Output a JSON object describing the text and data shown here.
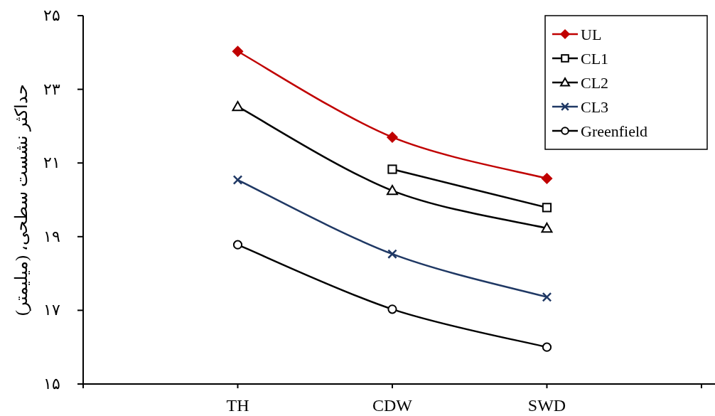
{
  "chart_data": {
    "type": "line",
    "ylabel": "حداکثر نشست سطحی، (میلیمتر)",
    "categories": [
      null,
      "TH",
      "CDW",
      "SWD",
      null
    ],
    "series": [
      {
        "name": "UL",
        "color": "#c00000",
        "marker": "diamond",
        "values": [
          null,
          24.03,
          21.7,
          20.58,
          null
        ]
      },
      {
        "name": "CL1",
        "color": "#000000",
        "marker": "square",
        "values": [
          null,
          null,
          20.83,
          19.79,
          null
        ]
      },
      {
        "name": "CL2",
        "color": "#000000",
        "marker": "triangle",
        "values": [
          null,
          22.53,
          20.25,
          19.23,
          null
        ]
      },
      {
        "name": "CL3",
        "color": "#1f3864",
        "marker": "cross",
        "values": [
          null,
          20.54,
          18.53,
          17.36,
          null
        ]
      },
      {
        "name": "Greenfield",
        "color": "#000000",
        "marker": "circle",
        "values": [
          null,
          18.78,
          17.03,
          16.0,
          null
        ]
      }
    ],
    "ylim": [
      15,
      25
    ],
    "yticks": [
      {
        "value": 15,
        "label": "۱۵"
      },
      {
        "value": 17,
        "label": "۱۷"
      },
      {
        "value": 19,
        "label": "۱۹"
      },
      {
        "value": 21,
        "label": "۲۱"
      },
      {
        "value": 23,
        "label": "۲۳"
      },
      {
        "value": 25,
        "label": "۲۵"
      }
    ],
    "legend": "top right"
  }
}
